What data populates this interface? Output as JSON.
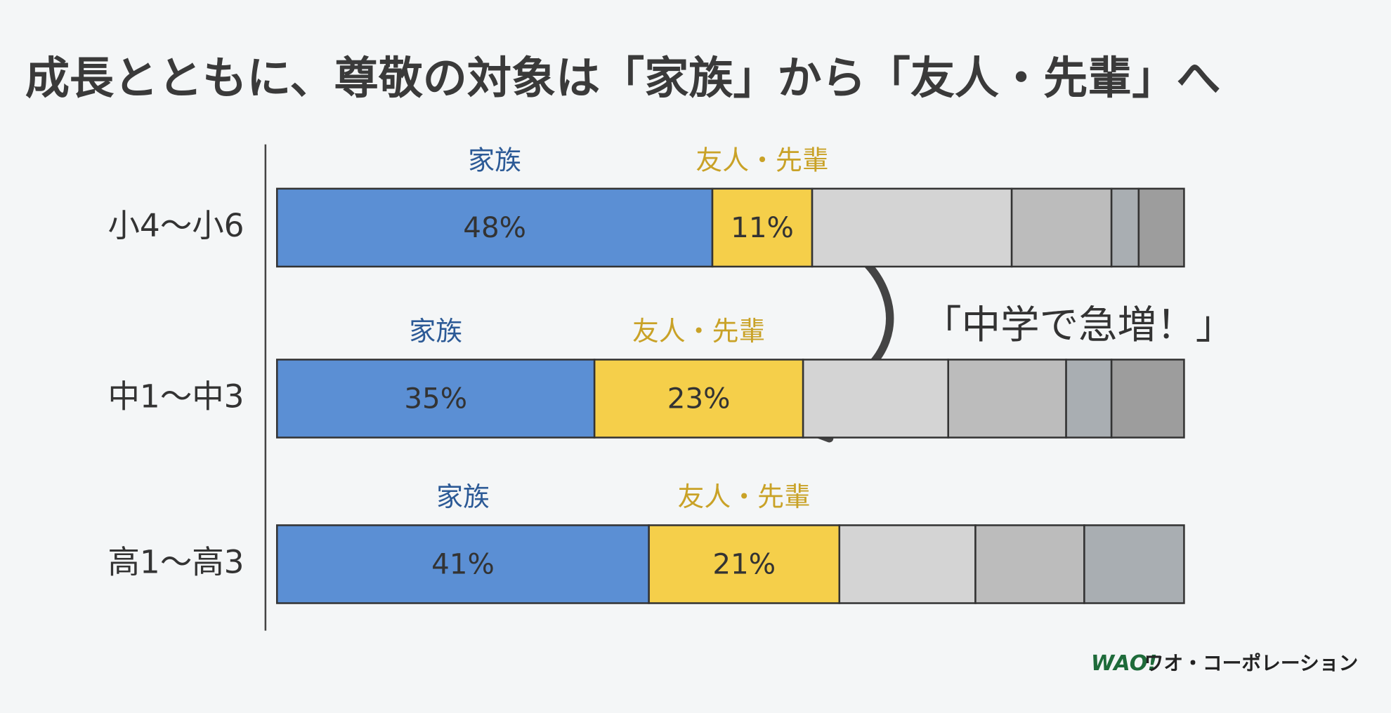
{
  "chart_data": {
    "type": "stacked-bar-horizontal",
    "title": "成長とともに、尊敬の対象は「家族」から「友人・先輩」へ",
    "annotation": "「中学で急増！」",
    "logo": {
      "mark": "WAO!",
      "name": "ワオ・コーポレーション"
    },
    "categories": [
      "小4～小6",
      "中1～中3",
      "高1～高3"
    ],
    "xlim": [
      0,
      100
    ],
    "series": [
      {
        "name": "家族",
        "color": "#5b8fd4",
        "values": [
          48,
          35,
          41
        ],
        "value_labels": [
          "48%",
          "35%",
          "41%"
        ]
      },
      {
        "name": "友人・先輩",
        "color": "#f5cf4a",
        "values": [
          11,
          23,
          21
        ],
        "value_labels": [
          "11%",
          "23%",
          "21%"
        ]
      },
      {
        "color": "#d4d4d4",
        "values": [
          22,
          16,
          15
        ]
      },
      {
        "color": "#bcbcbc",
        "values": [
          11,
          13,
          12
        ]
      },
      {
        "color": "#a9aeb2",
        "values": [
          3,
          5,
          11
        ]
      },
      {
        "color": "#9d9d9d",
        "values": [
          5,
          8,
          null
        ]
      }
    ]
  }
}
